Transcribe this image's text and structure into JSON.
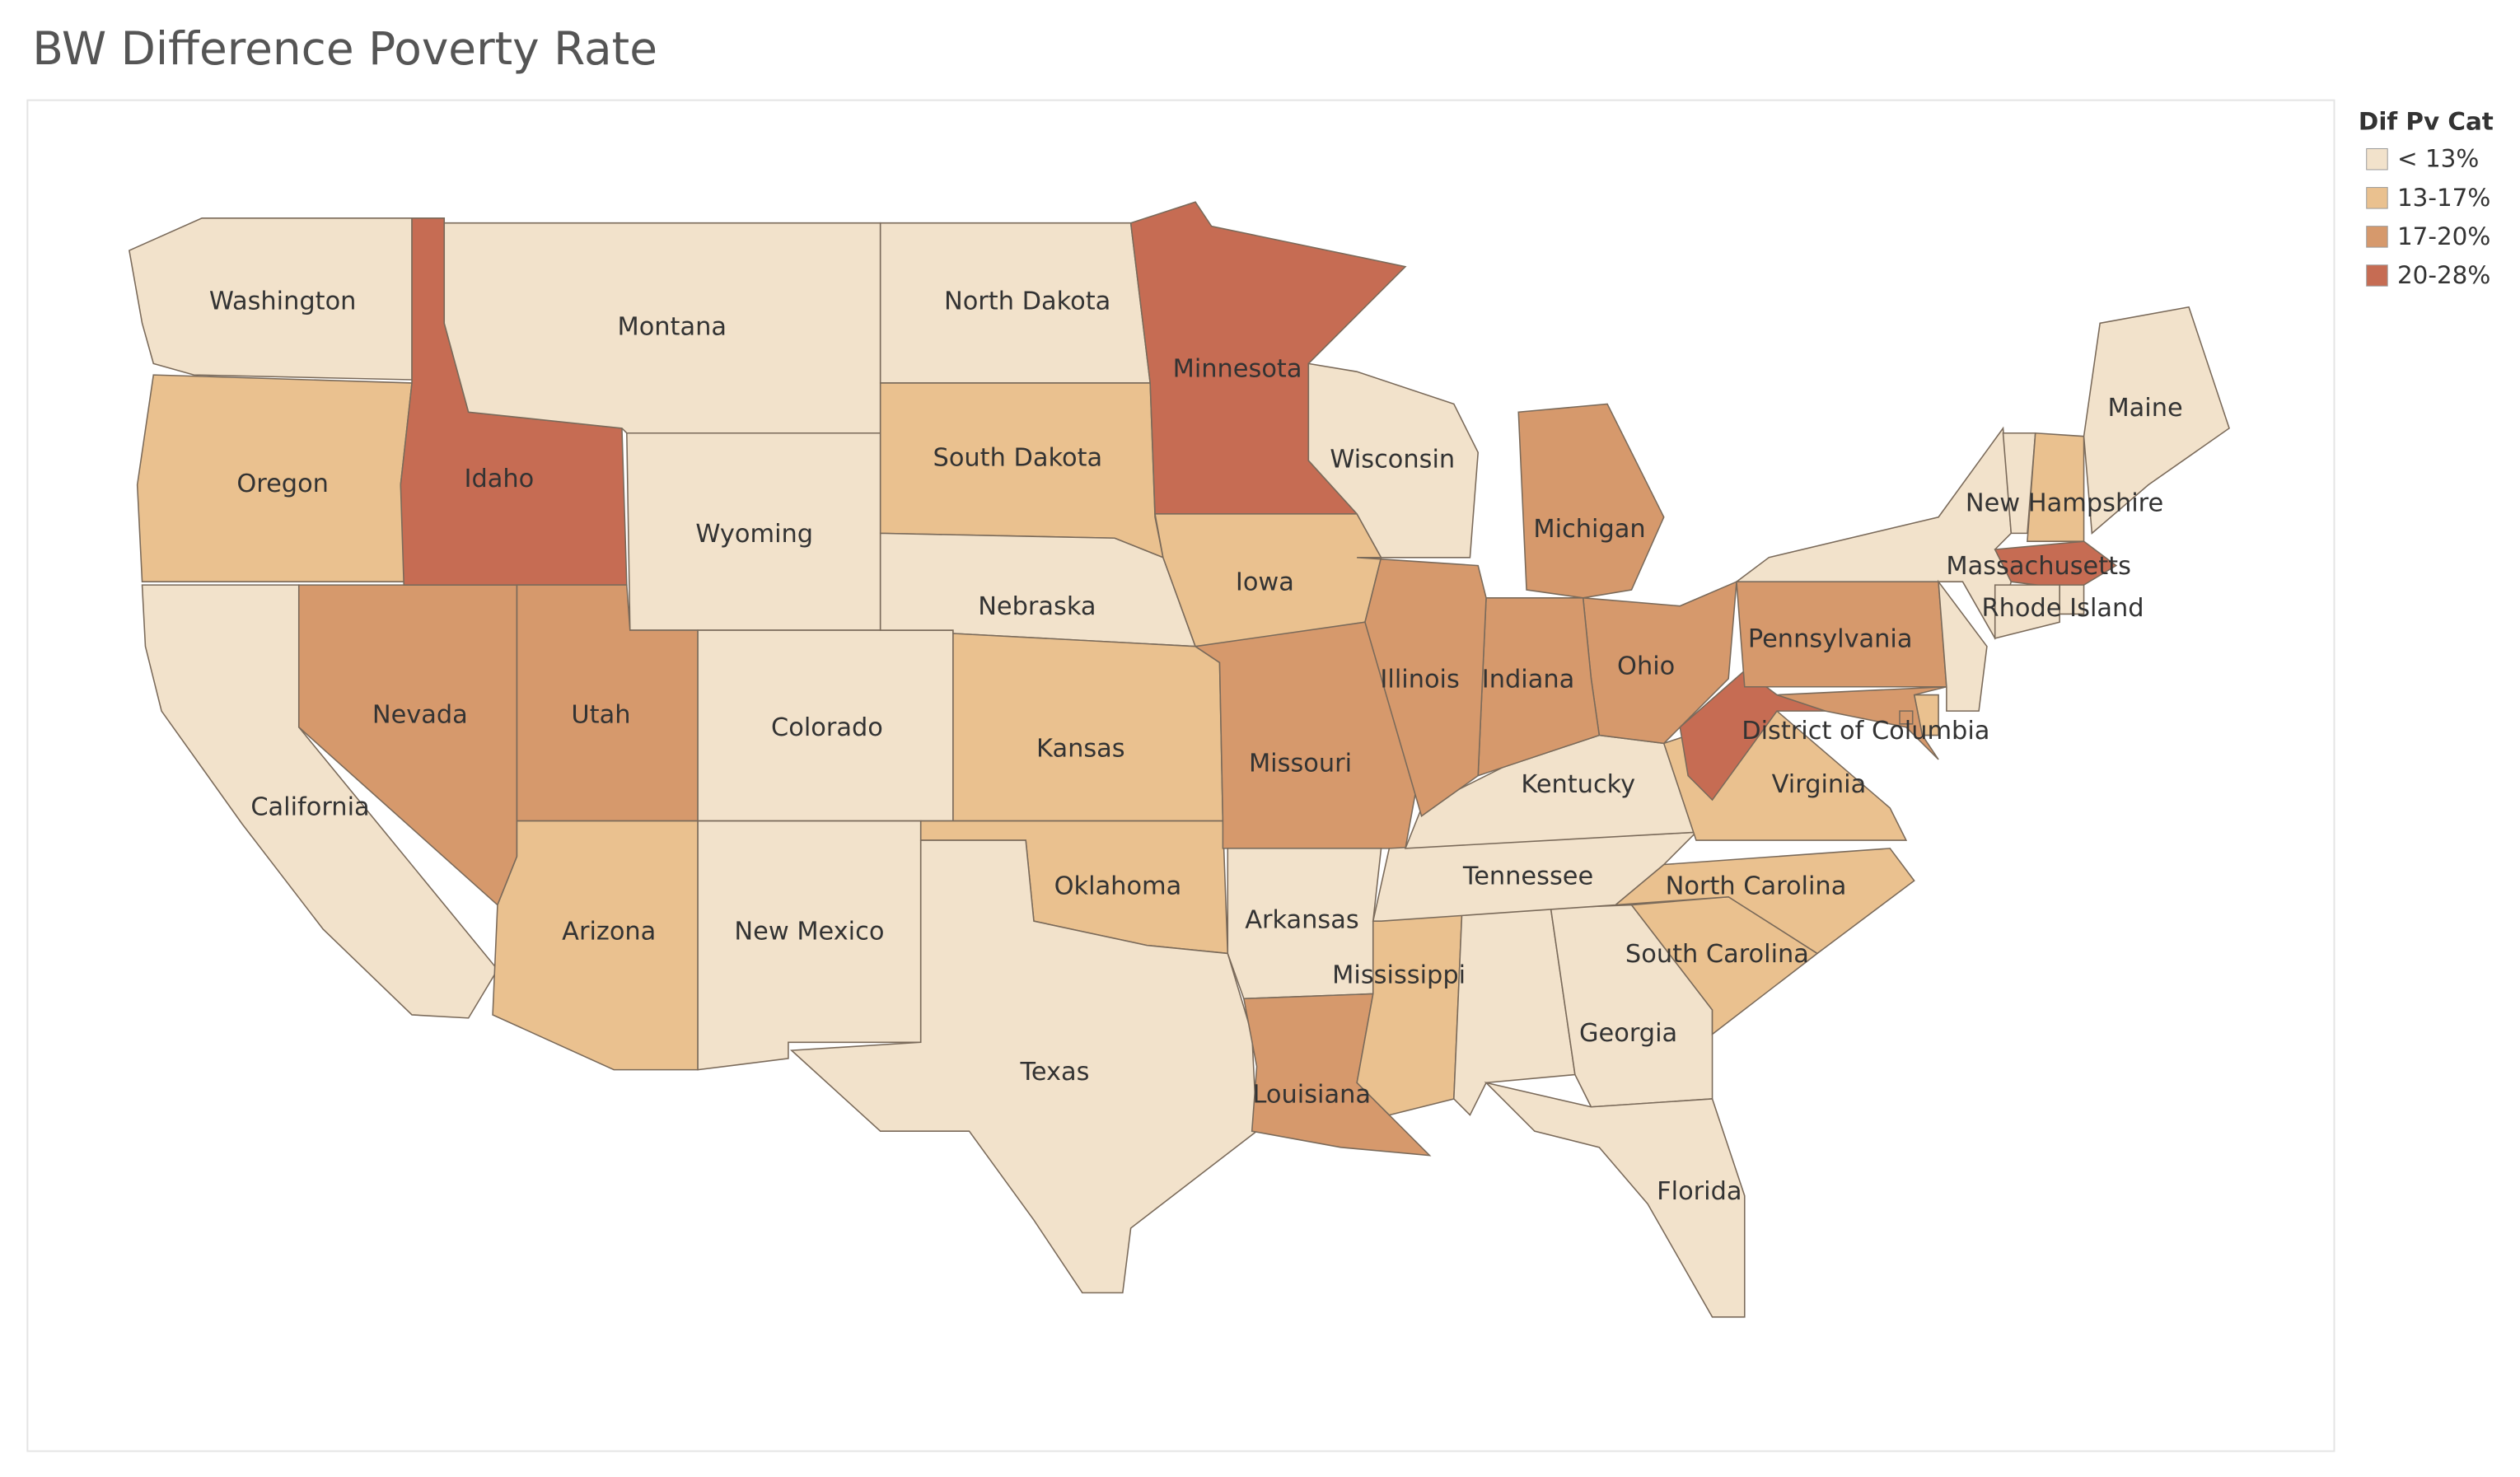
{
  "title": "BW Difference Poverty Rate",
  "legend": {
    "title": "Dif Pv Cat",
    "items": [
      {
        "label": "< 13%",
        "color": "#f2e2cb"
      },
      {
        "label": "13-17%",
        "color": "#eac18f"
      },
      {
        "label": "17-20%",
        "color": "#d6996c"
      },
      {
        "label": "20-28%",
        "color": "#c66c53"
      }
    ]
  },
  "states": [
    {
      "name": "Washington",
      "category": "< 13%"
    },
    {
      "name": "Oregon",
      "category": "13-17%"
    },
    {
      "name": "California",
      "category": "< 13%"
    },
    {
      "name": "Nevada",
      "category": "17-20%"
    },
    {
      "name": "Idaho",
      "category": "20-28%"
    },
    {
      "name": "Montana",
      "category": "< 13%"
    },
    {
      "name": "Wyoming",
      "category": "< 13%"
    },
    {
      "name": "Utah",
      "category": "17-20%"
    },
    {
      "name": "Arizona",
      "category": "13-17%"
    },
    {
      "name": "Colorado",
      "category": "< 13%"
    },
    {
      "name": "New Mexico",
      "category": "< 13%"
    },
    {
      "name": "North Dakota",
      "category": "< 13%"
    },
    {
      "name": "South Dakota",
      "category": "13-17%"
    },
    {
      "name": "Nebraska",
      "category": "< 13%"
    },
    {
      "name": "Kansas",
      "category": "13-17%"
    },
    {
      "name": "Oklahoma",
      "category": "13-17%"
    },
    {
      "name": "Texas",
      "category": "< 13%"
    },
    {
      "name": "Minnesota",
      "category": "20-28%"
    },
    {
      "name": "Iowa",
      "category": "13-17%"
    },
    {
      "name": "Missouri",
      "category": "17-20%"
    },
    {
      "name": "Arkansas",
      "category": "< 13%"
    },
    {
      "name": "Louisiana",
      "category": "17-20%"
    },
    {
      "name": "Mississippi",
      "category": "13-17%"
    },
    {
      "category": "< 13%"
    },
    {
      "name": "Georgia",
      "category": "< 13%"
    },
    {
      "name": "Florida",
      "category": "< 13%"
    },
    {
      "name": "South Carolina",
      "category": "13-17%"
    },
    {
      "name": "North Carolina",
      "category": "13-17%"
    },
    {
      "name": "Tennessee",
      "category": "< 13%"
    },
    {
      "name": "Kentucky",
      "category": "< 13%"
    },
    {
      "name": "Virginia",
      "category": "13-17%"
    },
    {
      "category": "20-28%"
    },
    {
      "name": "Ohio",
      "category": "17-20%"
    },
    {
      "name": "Indiana",
      "category": "17-20%"
    },
    {
      "name": "Illinois",
      "category": "17-20%"
    },
    {
      "name": "Wisconsin",
      "category": "< 13%"
    },
    {
      "name": "Michigan",
      "category": "17-20%"
    },
    {
      "name": "Pennsylvania",
      "category": "17-20%"
    },
    {
      "category": "< 13%"
    },
    {
      "category": "< 13%"
    },
    {
      "category": "13-17%"
    },
    {
      "category": "17-20%"
    },
    {
      "category": "< 13%"
    },
    {
      "name": "New Hampshire",
      "category": "13-17%"
    },
    {
      "name": "Maine",
      "category": "< 13%"
    },
    {
      "name": "Massachusetts",
      "category": "20-28%"
    },
    {
      "name": "Rhode Island",
      "category": "< 13%"
    },
    {
      "category": "< 13%"
    },
    {
      "name": "District of Columbia",
      "category": "17-20%"
    }
  ]
}
